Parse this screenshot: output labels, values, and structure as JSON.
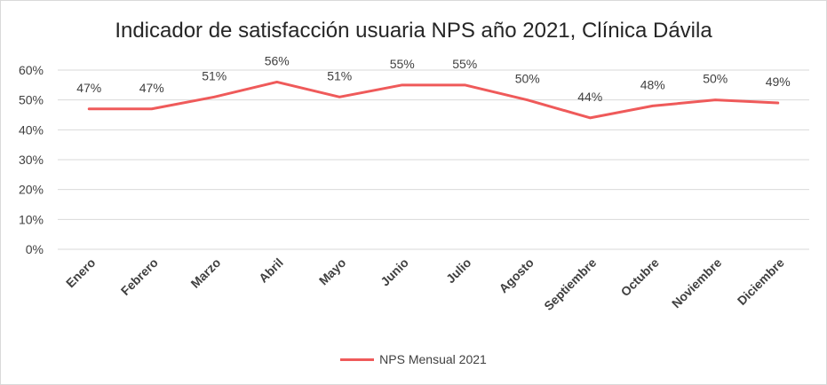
{
  "colors": {
    "series": "#ef5a5a",
    "grid": "#d9d9d9",
    "text": "#404040"
  },
  "chart_data": {
    "type": "line",
    "title": "Indicador de satisfacción usuaria NPS año 2021, Clínica Dávila",
    "xlabel": "",
    "ylabel": "",
    "ylim": [
      0,
      60
    ],
    "y_ticks": [
      "0%",
      "10%",
      "20%",
      "30%",
      "40%",
      "50%",
      "60%"
    ],
    "grid": true,
    "legend_position": "bottom",
    "categories": [
      "Enero",
      "Febrero",
      "Marzo",
      "Abril",
      "Mayo",
      "Junio",
      "Julio",
      "Agosto",
      "Septiembre",
      "Octubre",
      "Noviembre",
      "Diciembre"
    ],
    "series": [
      {
        "name": "NPS Mensual 2021",
        "values": [
          47,
          47,
          51,
          56,
          51,
          55,
          55,
          50,
          44,
          48,
          50,
          49
        ],
        "labels": [
          "47%",
          "47%",
          "51%",
          "56%",
          "51%",
          "55%",
          "55%",
          "50%",
          "44%",
          "48%",
          "50%",
          "49%"
        ]
      }
    ]
  }
}
